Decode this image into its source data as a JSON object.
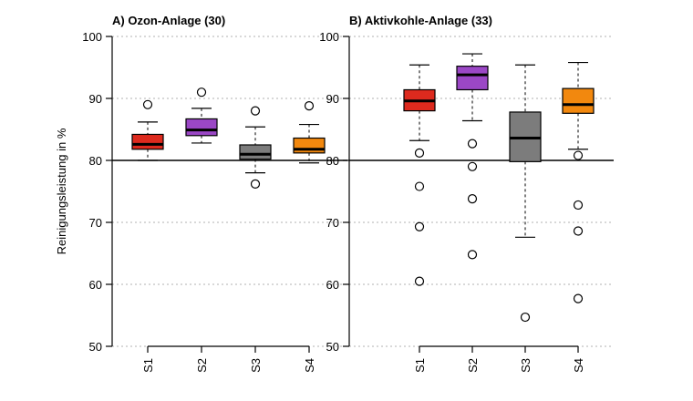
{
  "chart_data": {
    "type": "boxplot",
    "ylabel": "Reinigungsleistung in %",
    "ylim": [
      50,
      100
    ],
    "yticks": [
      50,
      60,
      70,
      80,
      90,
      100
    ],
    "reference_line": 80,
    "grid": "horizontal dotted",
    "panels": [
      {
        "title": "A) Ozon-Anlage (30)",
        "categories": [
          "S1",
          "S2",
          "S3",
          "S4"
        ],
        "colors": [
          "#dd2a1e",
          "#9b47c6",
          "#7c7c7c",
          "#f2880e"
        ],
        "boxes": [
          {
            "name": "S1",
            "whisker_low": 80,
            "q1": 81.8,
            "median": 82.6,
            "q3": 84.2,
            "whisker_high": 86.2,
            "outliers": [
              89
            ]
          },
          {
            "name": "S2",
            "whisker_low": 82.8,
            "q1": 84,
            "median": 84.9,
            "q3": 86.7,
            "whisker_high": 88.4,
            "outliers": [
              91
            ]
          },
          {
            "name": "S3",
            "whisker_low": 78,
            "q1": 80.2,
            "median": 81,
            "q3": 82.5,
            "whisker_high": 85.4,
            "outliers": [
              76.2,
              88
            ]
          },
          {
            "name": "S4",
            "whisker_low": 79.6,
            "q1": 81.2,
            "median": 81.8,
            "q3": 83.6,
            "whisker_high": 85.8,
            "outliers": [
              88.8
            ]
          }
        ]
      },
      {
        "title": "B) Aktivkohle-Anlage (33)",
        "categories": [
          "S1",
          "S2",
          "S3",
          "S4"
        ],
        "colors": [
          "#dd2a1e",
          "#9b47c6",
          "#7c7c7c",
          "#f2880e"
        ],
        "boxes": [
          {
            "name": "S1",
            "whisker_low": 83.2,
            "q1": 88,
            "median": 89.6,
            "q3": 91.4,
            "whisker_high": 95.4,
            "outliers": [
              81.2,
              75.8,
              69.3,
              60.5
            ]
          },
          {
            "name": "S2",
            "whisker_low": 86.4,
            "q1": 91.4,
            "median": 93.8,
            "q3": 95.2,
            "whisker_high": 97.2,
            "outliers": [
              82.7,
              79,
              73.8,
              64.8
            ]
          },
          {
            "name": "S3",
            "whisker_low": 67.6,
            "q1": 79.8,
            "median": 83.6,
            "q3": 87.8,
            "whisker_high": 95.4,
            "outliers": [
              54.7
            ]
          },
          {
            "name": "S4",
            "whisker_low": 81.8,
            "q1": 87.6,
            "median": 89,
            "q3": 91.6,
            "whisker_high": 95.8,
            "outliers": [
              80.8,
              72.8,
              68.6,
              57.7
            ]
          }
        ]
      }
    ]
  }
}
